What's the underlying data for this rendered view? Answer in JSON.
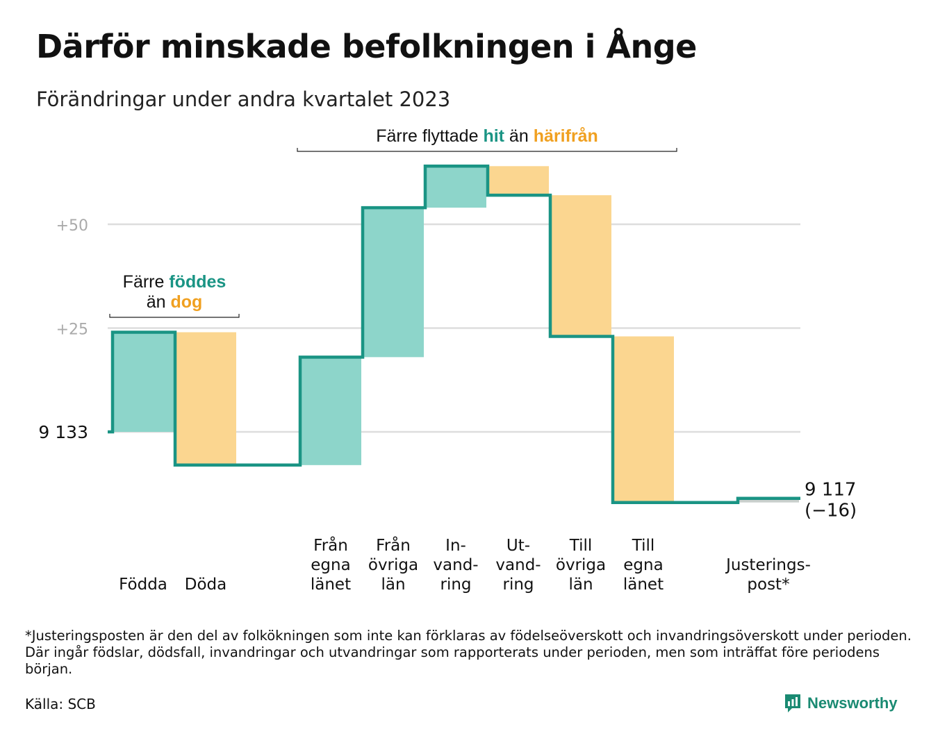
{
  "title": "Därför minskade befolkningen i Ånge",
  "subtitle": "Förändringar under andra kvartalet 2023",
  "chart_data": {
    "type": "waterfall",
    "start": {
      "label": "9  133",
      "value": 9133
    },
    "end": {
      "label": "9 117",
      "change_label": "(−16)",
      "value": 9117
    },
    "yticks": [
      {
        "label": "+50",
        "value": 50
      },
      {
        "label": "+25",
        "value": 25
      }
    ],
    "steps": [
      {
        "label": [
          "Födda"
        ],
        "value": 24,
        "type": "in"
      },
      {
        "label": [
          "Döda"
        ],
        "value": -32,
        "type": "out"
      },
      {
        "label": [],
        "value": 0,
        "type": "gap"
      },
      {
        "label": [
          "Från",
          "egna",
          "länet"
        ],
        "value": 26,
        "type": "in"
      },
      {
        "label": [
          "Från",
          "övriga",
          "län"
        ],
        "value": 36,
        "type": "in"
      },
      {
        "label": [
          "In-",
          "vand-",
          "ring"
        ],
        "value": 10,
        "type": "in"
      },
      {
        "label": [
          "Ut-",
          "vand-",
          "ring"
        ],
        "value": -7,
        "type": "out"
      },
      {
        "label": [
          "Till",
          "övriga",
          "län"
        ],
        "value": -34,
        "type": "out"
      },
      {
        "label": [
          "Till",
          "egna",
          "länet"
        ],
        "value": -40,
        "type": "out"
      },
      {
        "label": [],
        "value": 0,
        "type": "gap"
      },
      {
        "label": [
          "Justerings-",
          "post*"
        ],
        "value": 1,
        "type": "adjust"
      }
    ],
    "annotations": [
      {
        "from": 0,
        "to": 1,
        "lines": [
          [
            {
              "text": "Färre ",
              "role": "plain"
            },
            {
              "text": "föddes",
              "role": "in"
            }
          ],
          [
            {
              "text": "än ",
              "role": "plain"
            },
            {
              "text": "dog",
              "role": "out"
            }
          ]
        ]
      },
      {
        "from": 3,
        "to": 8,
        "lines": [
          [
            {
              "text": "Färre flyttade ",
              "role": "plain"
            },
            {
              "text": "hit",
              "role": "in"
            },
            {
              "text": " än ",
              "role": "plain"
            },
            {
              "text": "härifrån",
              "role": "out"
            }
          ]
        ]
      }
    ],
    "colors": {
      "in_fill": "#8dd5ca",
      "out_fill": "#fbd690",
      "adjust_fill": "#c9cfcc",
      "line": "#1a9484",
      "in_text": "#1a9484",
      "out_text": "#f0a020",
      "grid": "#dddddd",
      "tick": "#aaaaaa"
    }
  },
  "footnote": "*Justeringsposten är den del av folkökningen som inte kan förklaras av födelseöverskott och invandringsöverskott under perioden. Där ingår födslar, dödsfall, invandringar och utvandringar som rapporterats under perioden, men som inträffat före periodens början.",
  "source": "Källa: SCB",
  "brand": {
    "name": "Newsworthy",
    "icon": "newsworthy-logo-icon"
  }
}
